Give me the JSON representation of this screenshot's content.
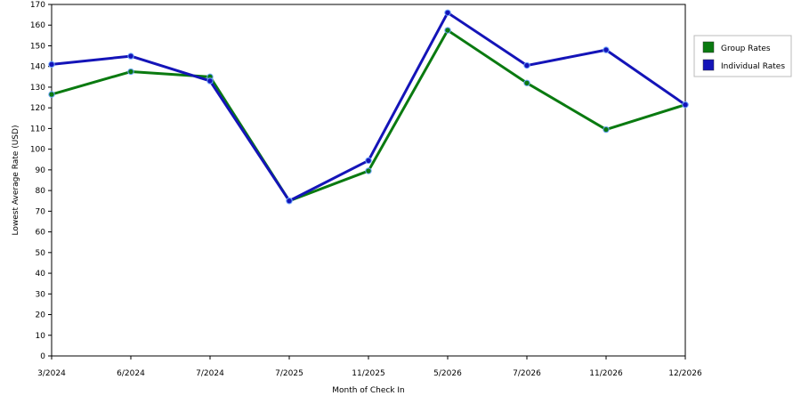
{
  "chart_data": {
    "type": "line",
    "title": "",
    "xlabel": "Month of Check In",
    "ylabel": "Lowest Average Rate (USD)",
    "categories": [
      "3/2024",
      "6/2024",
      "7/2024",
      "7/2025",
      "11/2025",
      "5/2026",
      "7/2026",
      "11/2026",
      "12/2026"
    ],
    "ylim": [
      0,
      170
    ],
    "ytick_step": 10,
    "grid": true,
    "legend_position": "right",
    "series": [
      {
        "name": "Group Rates",
        "color": "#0a7a10",
        "values": [
          126.5,
          137.5,
          135,
          75,
          89.5,
          157.5,
          132,
          109.5,
          121.5
        ]
      },
      {
        "name": "Individual Rates",
        "color": "#1414b8",
        "values": [
          141,
          145,
          133,
          75,
          94.5,
          166,
          140.5,
          148,
          121.5
        ]
      }
    ]
  }
}
